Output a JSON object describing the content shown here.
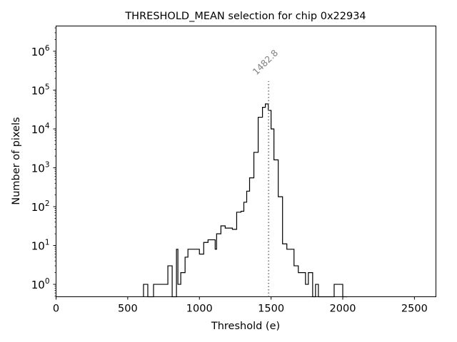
{
  "chart_data": {
    "type": "histogram-step",
    "title": "THRESHOLD_MEAN selection for chip 0x22934",
    "xlabel": "Threshold (e)",
    "ylabel": "Number of pixels",
    "xlim": [
      0,
      2650
    ],
    "ylim_log10": [
      -0.32,
      6.65
    ],
    "yscale": "log",
    "x_ticks": [
      0,
      500,
      1000,
      1500,
      2000,
      2500
    ],
    "x_tick_labels": [
      "0",
      "500",
      "1000",
      "1500",
      "2000",
      "2500"
    ],
    "y_ticks": [
      {
        "exp": 0,
        "label_base": "10",
        "label_exp": "0"
      },
      {
        "exp": 1,
        "label_base": "10",
        "label_exp": "1"
      },
      {
        "exp": 2,
        "label_base": "10",
        "label_exp": "2"
      },
      {
        "exp": 3,
        "label_base": "10",
        "label_exp": "3"
      },
      {
        "exp": 4,
        "label_base": "10",
        "label_exp": "4"
      },
      {
        "exp": 5,
        "label_base": "10",
        "label_exp": "5"
      },
      {
        "exp": 6,
        "label_base": "10",
        "label_exp": "6"
      }
    ],
    "bin_edges": [
      610,
      640,
      680,
      700,
      720,
      750,
      780,
      810,
      840,
      850,
      870,
      900,
      920,
      950,
      1000,
      1030,
      1060,
      1110,
      1120,
      1150,
      1180,
      1200,
      1210,
      1230,
      1260,
      1290,
      1310,
      1330,
      1350,
      1380,
      1410,
      1440,
      1460,
      1480,
      1500,
      1520,
      1550,
      1580,
      1610,
      1640,
      1660,
      1690,
      1720,
      1740,
      1760,
      1790,
      1810,
      1830,
      1860,
      1890,
      1910,
      1940,
      2000,
      2030
    ],
    "series": [
      {
        "name": "histogram",
        "color": "#000000",
        "counts": [
          1,
          0,
          1,
          1,
          1,
          1,
          3,
          0,
          8,
          1,
          2,
          5,
          8,
          8,
          6,
          12,
          14,
          8,
          20,
          32,
          28,
          28,
          28,
          26,
          72,
          76,
          130,
          250,
          550,
          2500,
          20000,
          36000,
          44000,
          30000,
          10000,
          1600,
          180,
          11,
          8,
          8,
          3,
          2,
          2,
          1,
          2,
          0,
          1,
          0,
          0,
          0,
          0,
          1,
          0
        ]
      }
    ],
    "annotations": [
      {
        "type": "vline",
        "x": 1482.8,
        "label": "1482.8",
        "style": "dotted",
        "color": "#808080",
        "top_value": 170000
      }
    ]
  }
}
